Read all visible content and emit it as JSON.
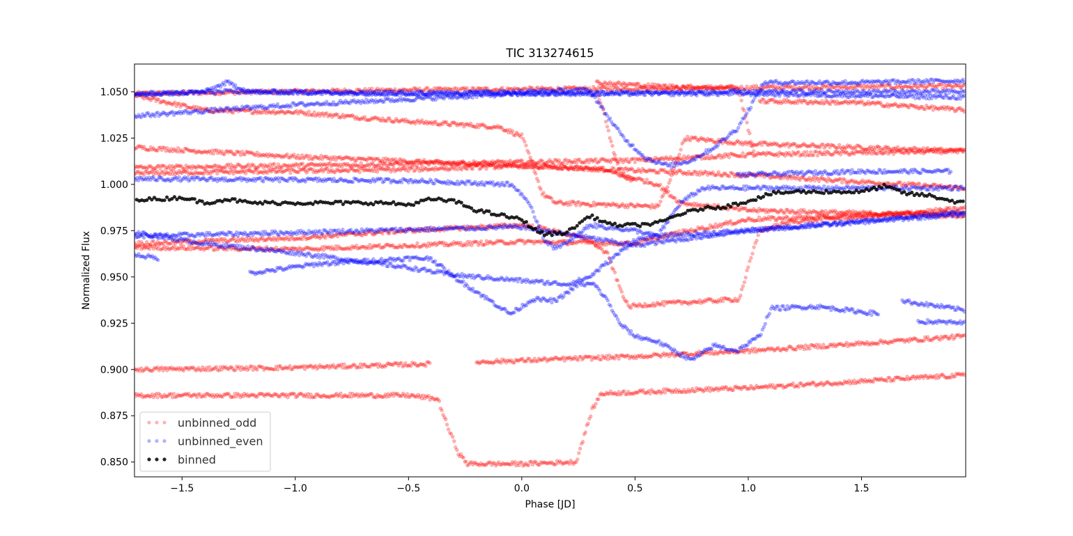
{
  "chart_data": {
    "type": "scatter",
    "title": "TIC 313274615",
    "xlabel": "Phase [JD]",
    "ylabel": "Normalized Flux",
    "xlim": [
      -1.71,
      1.96
    ],
    "ylim": [
      0.842,
      1.065
    ],
    "xticks": [
      -1.5,
      -1.0,
      -0.5,
      0.0,
      0.5,
      1.0,
      1.5
    ],
    "xtick_labels": [
      "−1.5",
      "−1.0",
      "−0.5",
      "0.0",
      "0.5",
      "1.0",
      "1.5"
    ],
    "yticks": [
      0.85,
      0.875,
      0.9,
      0.925,
      0.95,
      0.975,
      1.0,
      1.025,
      1.05
    ],
    "ytick_labels": [
      "0.850",
      "0.875",
      "0.900",
      "0.925",
      "0.950",
      "0.975",
      "1.000",
      "1.025",
      "1.050"
    ],
    "grid": false,
    "legend_position": "lower-left",
    "series": [
      {
        "name": "unbinned_odd",
        "color": "#ff0000",
        "opacity": 0.3,
        "segments": [
          [
            [
              -1.71,
              1.049
            ],
            [
              -0.5,
              1.051
            ],
            [
              1.96,
              1.053
            ]
          ],
          [
            [
              -1.71,
              1.048
            ],
            [
              -1.4,
              1.04
            ],
            [
              -1.0,
              1.039
            ],
            [
              -0.5,
              1.034
            ],
            [
              -0.1,
              1.031
            ],
            [
              0.0,
              1.026
            ],
            [
              0.05,
              1.01
            ],
            [
              0.09,
              0.995
            ],
            [
              0.15,
              0.99
            ],
            [
              0.6,
              0.988
            ],
            [
              0.65,
              1.0
            ],
            [
              0.69,
              1.015
            ],
            [
              0.72,
              1.025
            ],
            [
              1.0,
              1.022
            ],
            [
              1.96,
              1.018
            ]
          ],
          [
            [
              -1.71,
              1.02
            ],
            [
              -1.0,
              1.015
            ],
            [
              0.0,
              1.01
            ],
            [
              1.0,
              1.005
            ],
            [
              1.96,
              0.998
            ]
          ],
          [
            [
              -1.71,
              1.009
            ],
            [
              -0.5,
              1.011
            ],
            [
              0.5,
              1.013
            ],
            [
              1.0,
              1.016
            ],
            [
              1.96,
              1.018
            ]
          ],
          [
            [
              -1.71,
              1.006
            ],
            [
              -0.5,
              1.008
            ],
            [
              0.0,
              1.01
            ],
            [
              0.35,
              1.008
            ],
            [
              0.6,
              1.0
            ],
            [
              0.7,
              0.99
            ],
            [
              1.0,
              0.986
            ],
            [
              1.96,
              0.983
            ]
          ],
          [
            [
              -1.71,
              0.968
            ],
            [
              -1.0,
              0.971
            ],
            [
              -0.5,
              0.975
            ],
            [
              0.0,
              0.978
            ],
            [
              0.1,
              0.976
            ],
            [
              0.3,
              0.97
            ],
            [
              0.38,
              0.962
            ],
            [
              0.43,
              0.945
            ],
            [
              0.47,
              0.934
            ],
            [
              0.55,
              0.935
            ],
            [
              0.96,
              0.938
            ],
            [
              1.0,
              0.955
            ],
            [
              1.05,
              0.975
            ],
            [
              1.2,
              0.98
            ],
            [
              1.96,
              0.987
            ]
          ],
          [
            [
              -1.71,
              0.966
            ],
            [
              -1.0,
              0.965
            ],
            [
              0.0,
              0.969
            ],
            [
              0.5,
              0.968
            ],
            [
              0.7,
              0.974
            ],
            [
              1.0,
              0.981
            ],
            [
              1.96,
              0.985
            ]
          ],
          [
            [
              0.33,
              1.05
            ],
            [
              0.36,
              1.04
            ],
            [
              0.4,
              1.02
            ],
            [
              0.44,
              1.005
            ],
            [
              0.5,
              1.002
            ]
          ],
          [
            [
              0.33,
              1.055
            ],
            [
              0.6,
              1.053
            ],
            [
              0.95,
              1.052
            ],
            [
              0.97,
              1.045
            ],
            [
              1.0,
              1.03
            ],
            [
              1.03,
              1.015
            ]
          ],
          [
            [
              1.05,
              1.045
            ],
            [
              1.5,
              1.044
            ],
            [
              1.96,
              1.04
            ]
          ],
          [
            [
              -1.71,
              0.9
            ],
            [
              -1.0,
              0.901
            ],
            [
              -0.4,
              0.903
            ]
          ],
          [
            [
              -0.2,
              0.904
            ],
            [
              0.5,
              0.907
            ],
            [
              1.0,
              0.91
            ],
            [
              1.5,
              0.914
            ],
            [
              1.96,
              0.918
            ]
          ],
          [
            [
              -1.71,
              0.886
            ],
            [
              -0.5,
              0.886
            ],
            [
              -0.37,
              0.884
            ],
            [
              -0.33,
              0.87
            ],
            [
              -0.28,
              0.855
            ],
            [
              -0.24,
              0.849
            ],
            [
              0.0,
              0.849
            ],
            [
              0.24,
              0.85
            ],
            [
              0.27,
              0.862
            ],
            [
              0.31,
              0.878
            ],
            [
              0.35,
              0.887
            ],
            [
              1.0,
              0.89
            ],
            [
              1.96,
              0.897
            ]
          ]
        ]
      },
      {
        "name": "unbinned_even",
        "color": "#0000ff",
        "opacity": 0.3,
        "segments": [
          [
            [
              -1.71,
              1.049
            ],
            [
              -1.3,
              1.05
            ],
            [
              0.0,
              1.049
            ],
            [
              1.0,
              1.049
            ],
            [
              1.96,
              1.047
            ]
          ],
          [
            [
              -1.71,
              1.048
            ],
            [
              -1.4,
              1.05
            ],
            [
              -1.3,
              1.055
            ],
            [
              -1.2,
              1.05
            ],
            [
              -0.5,
              1.049
            ],
            [
              0.0,
              1.05
            ],
            [
              0.3,
              1.051
            ],
            [
              0.36,
              1.04
            ],
            [
              0.45,
              1.025
            ],
            [
              0.55,
              1.014
            ],
            [
              0.65,
              1.01
            ],
            [
              0.75,
              1.013
            ],
            [
              0.85,
              1.02
            ],
            [
              0.95,
              1.03
            ],
            [
              1.0,
              1.04
            ],
            [
              1.07,
              1.055
            ],
            [
              1.5,
              1.055
            ],
            [
              1.96,
              1.056
            ]
          ],
          [
            [
              -1.71,
              1.037
            ],
            [
              -1.0,
              1.043
            ],
            [
              -0.5,
              1.046
            ],
            [
              0.0,
              1.049
            ],
            [
              1.0,
              1.05
            ],
            [
              1.96,
              1.05
            ]
          ],
          [
            [
              -1.71,
              1.003
            ],
            [
              -0.5,
              1.002
            ],
            [
              -0.05,
              1.0
            ],
            [
              0.0,
              0.995
            ],
            [
              0.05,
              0.985
            ],
            [
              0.1,
              0.97
            ],
            [
              0.14,
              0.966
            ],
            [
              0.2,
              0.968
            ],
            [
              0.3,
              0.978
            ],
            [
              0.5,
              0.975
            ],
            [
              0.6,
              0.972
            ],
            [
              0.7,
              0.99
            ],
            [
              0.8,
              0.998
            ],
            [
              1.96,
              0.998
            ]
          ],
          [
            [
              0.95,
              1.005
            ],
            [
              1.5,
              1.007
            ],
            [
              1.9,
              1.007
            ]
          ],
          [
            [
              -1.71,
              0.974
            ],
            [
              -1.4,
              0.968
            ],
            [
              -1.0,
              0.963
            ],
            [
              -0.5,
              0.955
            ],
            [
              -0.3,
              0.951
            ],
            [
              0.0,
              0.948
            ],
            [
              0.2,
              0.946
            ],
            [
              0.3,
              0.95
            ],
            [
              0.4,
              0.96
            ],
            [
              0.5,
              0.97
            ],
            [
              0.6,
              0.972
            ],
            [
              1.0,
              0.975
            ],
            [
              1.96,
              0.984
            ]
          ],
          [
            [
              -1.71,
              0.962
            ],
            [
              -1.6,
              0.96
            ]
          ],
          [
            [
              -1.2,
              0.952
            ],
            [
              -0.9,
              0.957
            ],
            [
              -0.5,
              0.96
            ],
            [
              -0.4,
              0.96
            ],
            [
              -0.3,
              0.95
            ],
            [
              -0.15,
              0.938
            ],
            [
              -0.05,
              0.93
            ],
            [
              0.05,
              0.938
            ],
            [
              0.15,
              0.937
            ],
            [
              0.25,
              0.946
            ],
            [
              0.32,
              0.946
            ],
            [
              0.38,
              0.937
            ],
            [
              0.43,
              0.925
            ],
            [
              0.5,
              0.918
            ],
            [
              0.6,
              0.915
            ],
            [
              0.75,
              0.905
            ],
            [
              0.85,
              0.913
            ],
            [
              0.95,
              0.91
            ],
            [
              1.05,
              0.918
            ],
            [
              1.1,
              0.933
            ],
            [
              1.3,
              0.934
            ],
            [
              1.58,
              0.93
            ]
          ],
          [
            [
              -1.71,
              0.972
            ],
            [
              -1.0,
              0.974
            ],
            [
              0.0,
              0.977
            ],
            [
              0.5,
              0.967
            ],
            [
              1.0,
              0.975
            ],
            [
              1.96,
              0.985
            ]
          ],
          [
            [
              1.68,
              0.937
            ],
            [
              1.96,
              0.932
            ]
          ],
          [
            [
              1.75,
              0.926
            ],
            [
              1.96,
              0.925
            ]
          ]
        ]
      },
      {
        "name": "binned",
        "color": "#000000",
        "opacity": 0.85,
        "points": [
          [
            -1.7,
            0.992
          ],
          [
            -1.6,
            0.992
          ],
          [
            -1.5,
            0.993
          ],
          [
            -1.4,
            0.99
          ],
          [
            -1.3,
            0.992
          ],
          [
            -1.2,
            0.99
          ],
          [
            -1.0,
            0.99
          ],
          [
            -0.8,
            0.99
          ],
          [
            -0.6,
            0.99
          ],
          [
            -0.5,
            0.989
          ],
          [
            -0.4,
            0.992
          ],
          [
            -0.3,
            0.991
          ],
          [
            -0.2,
            0.986
          ],
          [
            0.0,
            0.981
          ],
          [
            0.05,
            0.976
          ],
          [
            0.1,
            0.973
          ],
          [
            0.2,
            0.974
          ],
          [
            0.3,
            0.983
          ],
          [
            0.4,
            0.978
          ],
          [
            0.5,
            0.978
          ],
          [
            0.6,
            0.979
          ],
          [
            0.7,
            0.984
          ],
          [
            0.8,
            0.987
          ],
          [
            0.9,
            0.988
          ],
          [
            1.0,
            0.991
          ],
          [
            1.1,
            0.995
          ],
          [
            1.2,
            0.996
          ],
          [
            1.4,
            0.996
          ],
          [
            1.5,
            0.996
          ],
          [
            1.6,
            0.999
          ],
          [
            1.7,
            0.995
          ],
          [
            1.8,
            0.994
          ],
          [
            1.9,
            0.991
          ],
          [
            1.96,
            0.99
          ]
        ]
      }
    ]
  }
}
